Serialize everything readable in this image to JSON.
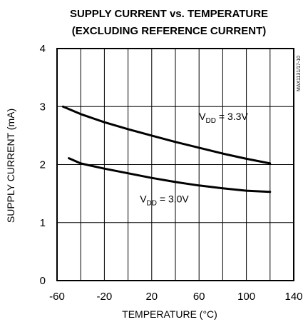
{
  "chart_data": {
    "type": "line",
    "title": "SUPPLY CURRENT vs. TEMPERATURE",
    "subtitle": "(EXCLUDING REFERENCE CURRENT)",
    "xlabel": "TEMPERATURE (°C)",
    "ylabel": "SUPPLY CURRENT  (mA)",
    "xlim": [
      -60,
      140
    ],
    "ylim": [
      0,
      4
    ],
    "x_ticks": [
      -60,
      -20,
      20,
      60,
      100,
      140
    ],
    "x_tick_labels": [
      "-60",
      "-20",
      "20",
      "60",
      "100",
      "140"
    ],
    "y_ticks": [
      0,
      1,
      2,
      3,
      4
    ],
    "y_tick_labels": [
      "0",
      "1",
      "2",
      "3",
      "4"
    ],
    "grid": true,
    "code": "MAX1131/17-10",
    "series": [
      {
        "name": "V_DD = 3.3V",
        "label_main": "V",
        "label_sub": "DD",
        "label_rest": " = 3.3V",
        "color": "#000000",
        "x": [
          -55,
          -40,
          -20,
          0,
          20,
          40,
          60,
          80,
          100,
          120
        ],
        "values": [
          3.0,
          2.87,
          2.73,
          2.61,
          2.5,
          2.39,
          2.29,
          2.19,
          2.1,
          2.02
        ]
      },
      {
        "name": "V_DD = 3.0V",
        "label_main": "V",
        "label_sub": "DD",
        "label_rest": " = 3.0V",
        "color": "#000000",
        "x": [
          -50,
          -40,
          -20,
          0,
          20,
          40,
          60,
          80,
          100,
          120
        ],
        "values": [
          2.11,
          2.02,
          1.93,
          1.85,
          1.77,
          1.7,
          1.64,
          1.59,
          1.55,
          1.53
        ]
      }
    ]
  }
}
